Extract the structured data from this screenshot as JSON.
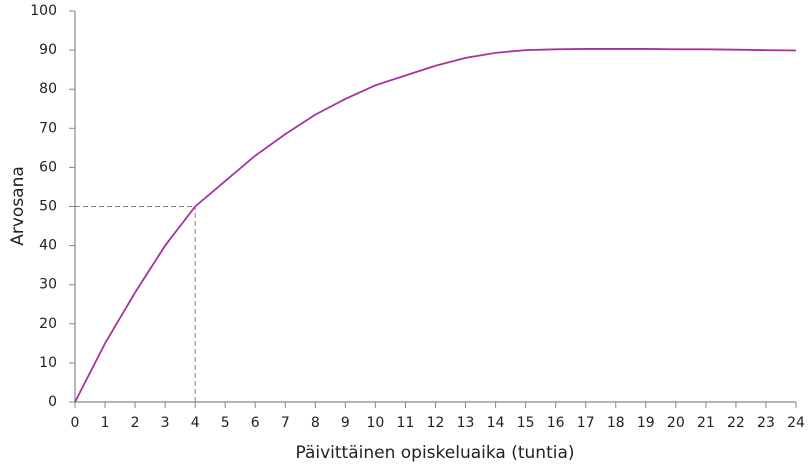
{
  "chart_data": {
    "type": "line",
    "x_label": "Päivittäinen opiskeluaika (tuntia)",
    "y_label": "Arvosana",
    "x": [
      0,
      1,
      2,
      3,
      4,
      5,
      6,
      7,
      8,
      9,
      10,
      11,
      12,
      13,
      14,
      15,
      16,
      17,
      18,
      19,
      20,
      21,
      22,
      23,
      24
    ],
    "series": [
      {
        "name": null,
        "color": "#a8329c",
        "values": [
          0,
          15,
          28,
          40,
          50,
          56.5,
          63,
          68.5,
          73.5,
          77.5,
          81,
          83.5,
          86,
          88,
          89.3,
          90,
          90.2,
          90.3,
          90.3,
          90.3,
          90.2,
          90.2,
          90.1,
          90,
          89.9
        ]
      }
    ],
    "guide": {
      "x": 4,
      "y": 50,
      "color": "#888888"
    },
    "xlim": [
      0,
      24
    ],
    "xticks": [
      0,
      1,
      2,
      3,
      4,
      5,
      6,
      7,
      8,
      9,
      10,
      11,
      12,
      13,
      14,
      15,
      16,
      17,
      18,
      19,
      20,
      21,
      22,
      23,
      24
    ],
    "ylim": [
      0,
      100
    ],
    "yticks": [
      0,
      10,
      20,
      30,
      40,
      50,
      60,
      70,
      80,
      90,
      100
    ],
    "grid": false
  }
}
